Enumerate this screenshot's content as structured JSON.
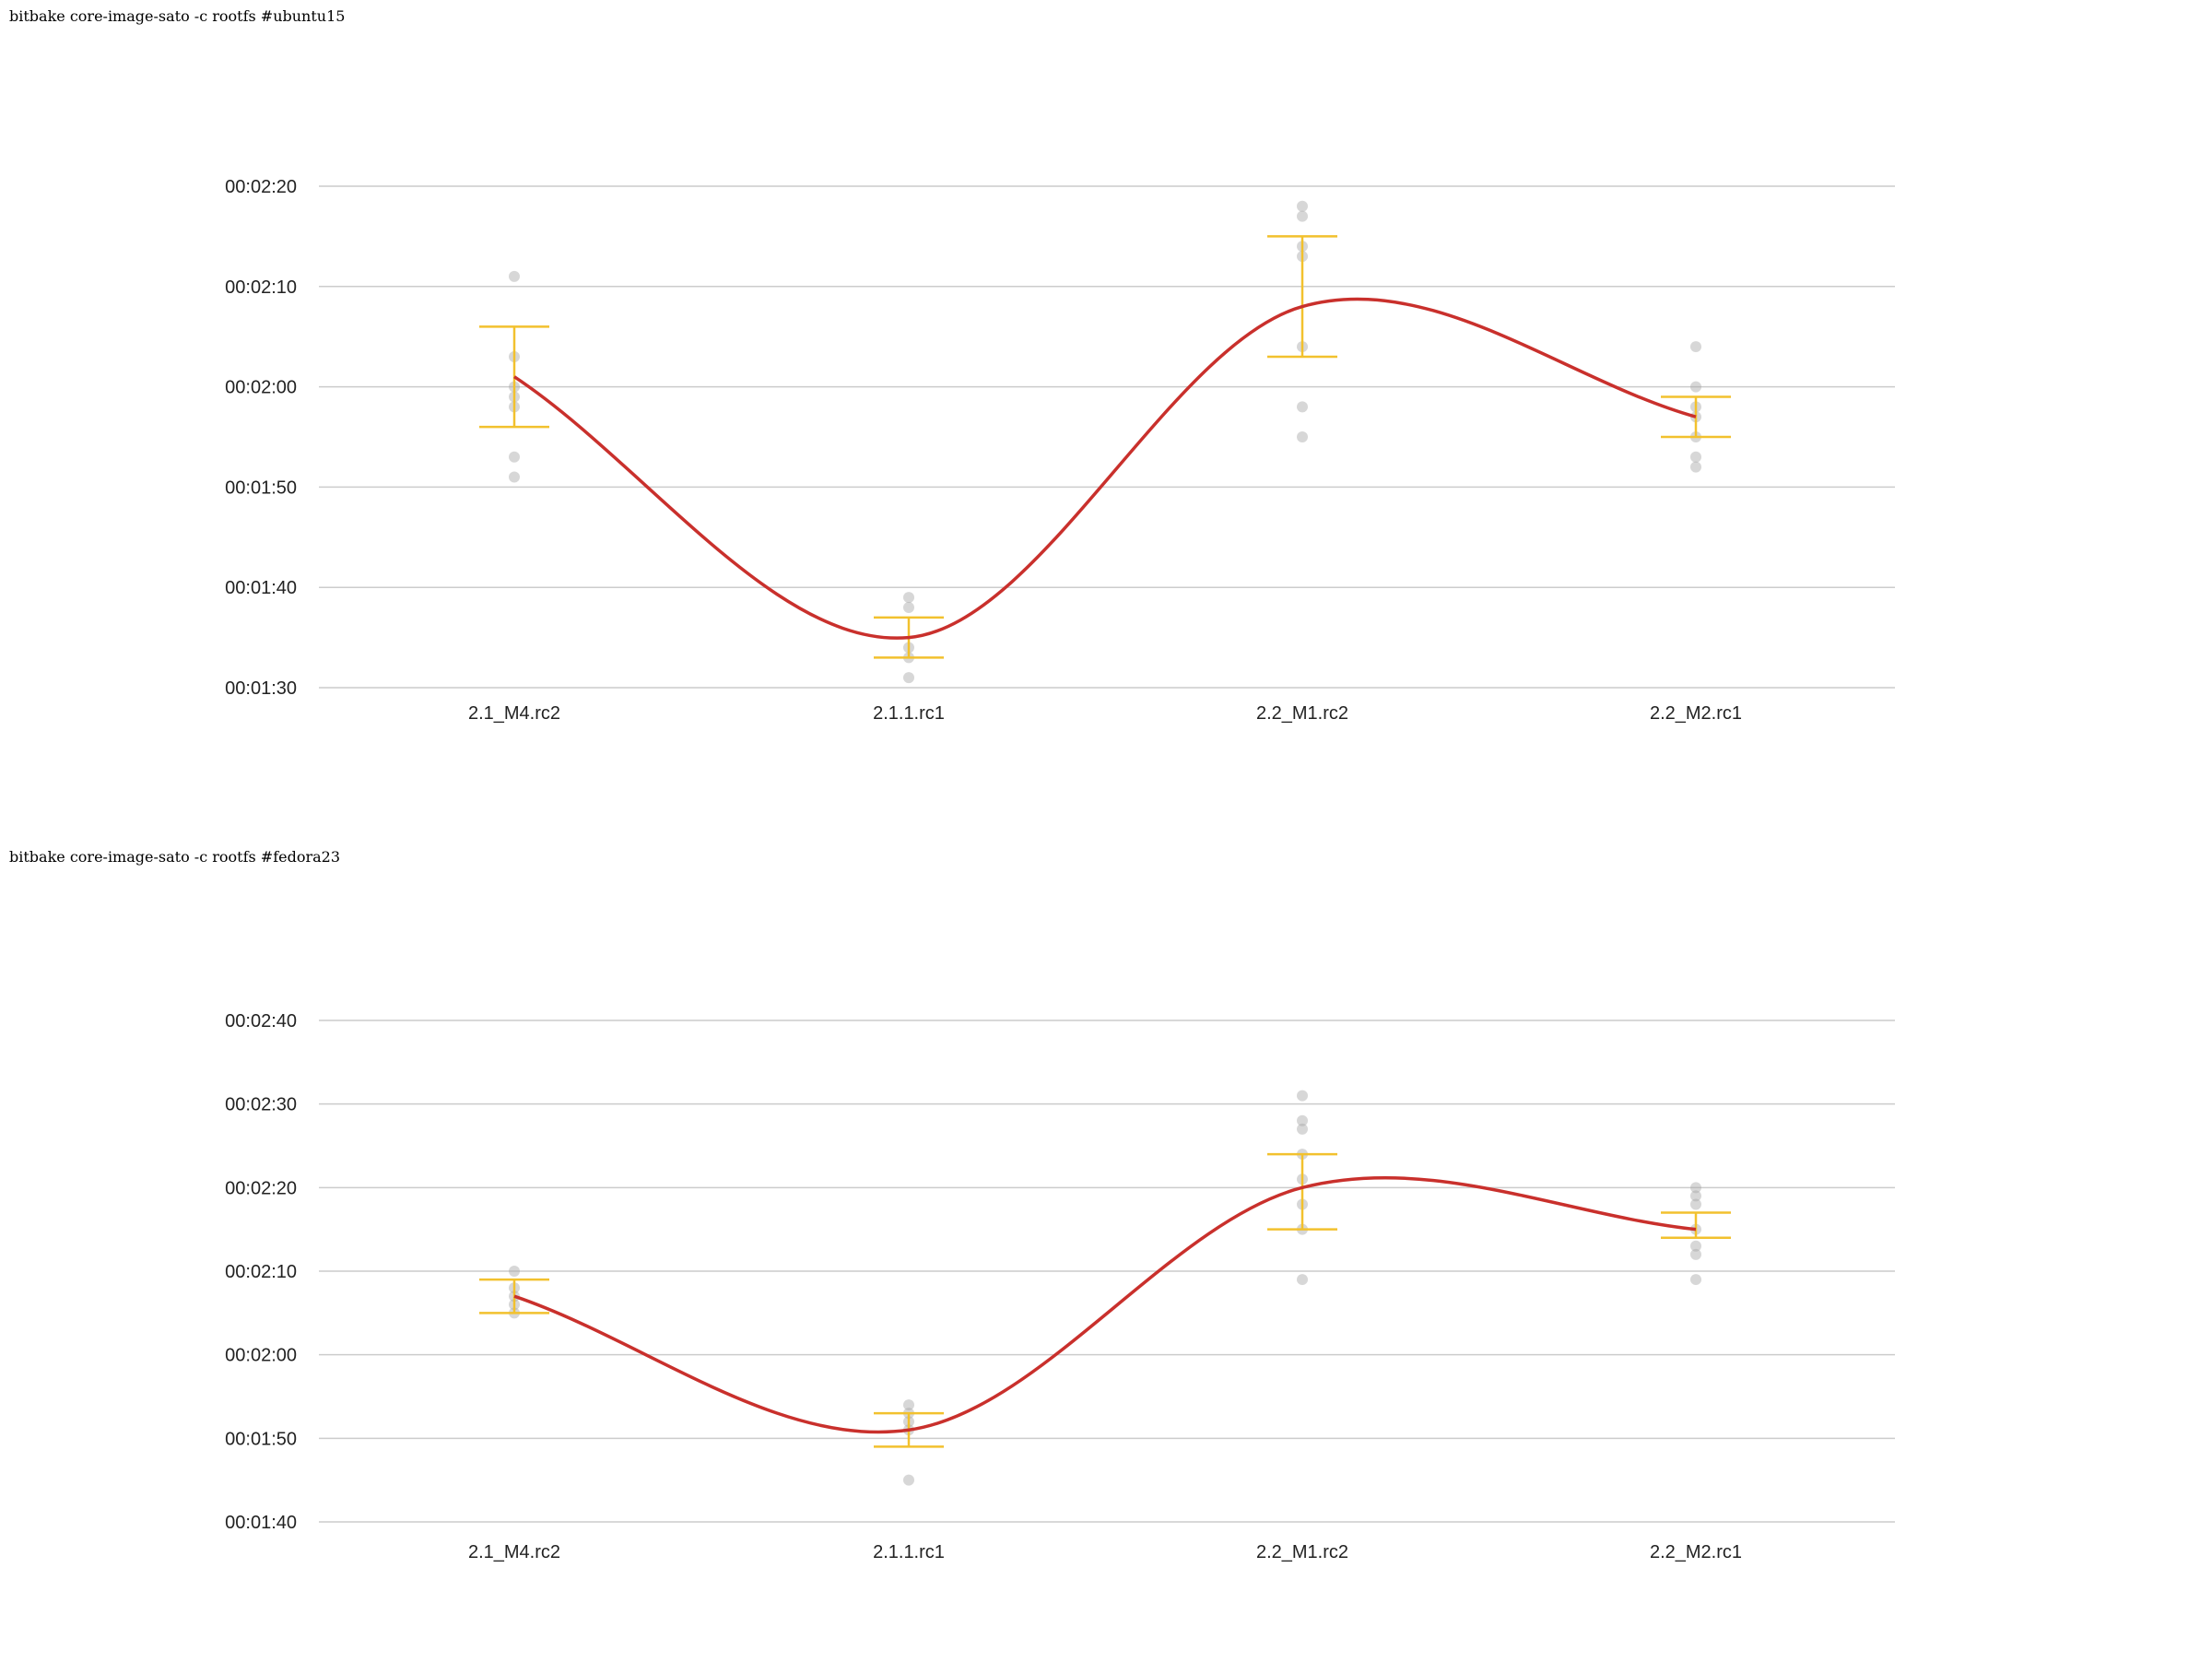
{
  "chart_data": [
    {
      "type": "line",
      "title": "bitbake core-image-sato -c rootfs #ubuntu15",
      "categories": [
        "2.1_M4.rc2",
        "2.1.1.rc1",
        "2.2_M1.rc2",
        "2.2_M2.rc1"
      ],
      "y_format": "hh:mm:ss",
      "y_ticks": [
        "00:01:30",
        "00:01:40",
        "00:01:50",
        "00:02:00",
        "00:02:10",
        "00:02:20"
      ],
      "ylim": [
        "00:01:30",
        "00:02:20"
      ],
      "grid": true,
      "series": [
        {
          "role": "mean",
          "color": "#c9302c",
          "values": [
            "00:02:01",
            "00:01:35",
            "00:02:08",
            "00:01:57"
          ]
        },
        {
          "role": "error_bar_low",
          "color": "#f2c12e",
          "values": [
            "00:01:56",
            "00:01:33",
            "00:02:03",
            "00:01:55"
          ]
        },
        {
          "role": "error_bar_high",
          "color": "#f2c12e",
          "values": [
            "00:02:06",
            "00:01:37",
            "00:02:15",
            "00:01:59"
          ]
        },
        {
          "role": "samples",
          "color": "#a6a6a6",
          "values": [
            [
              "00:02:11",
              "00:02:03",
              "00:02:00",
              "00:01:59",
              "00:01:58",
              "00:01:53",
              "00:01:51"
            ],
            [
              "00:01:39",
              "00:01:38",
              "00:01:34",
              "00:01:33",
              "00:01:31"
            ],
            [
              "00:02:18",
              "00:02:17",
              "00:02:14",
              "00:02:13",
              "00:02:04",
              "00:01:58",
              "00:01:55"
            ],
            [
              "00:02:04",
              "00:02:00",
              "00:01:58",
              "00:01:57",
              "00:01:55",
              "00:01:53",
              "00:01:52"
            ]
          ]
        }
      ]
    },
    {
      "type": "line",
      "title": "bitbake core-image-sato -c rootfs #fedora23",
      "categories": [
        "2.1_M4.rc2",
        "2.1.1.rc1",
        "2.2_M1.rc2",
        "2.2_M2.rc1"
      ],
      "y_format": "hh:mm:ss",
      "y_ticks": [
        "00:01:40",
        "00:01:50",
        "00:02:00",
        "00:02:10",
        "00:02:20",
        "00:02:30",
        "00:02:40"
      ],
      "ylim": [
        "00:01:40",
        "00:02:40"
      ],
      "grid": true,
      "series": [
        {
          "role": "mean",
          "color": "#c9302c",
          "values": [
            "00:02:07",
            "00:01:51",
            "00:02:20",
            "00:02:15"
          ]
        },
        {
          "role": "error_bar_low",
          "color": "#f2c12e",
          "values": [
            "00:02:05",
            "00:01:49",
            "00:02:15",
            "00:02:14"
          ]
        },
        {
          "role": "error_bar_high",
          "color": "#f2c12e",
          "values": [
            "00:02:09",
            "00:01:53",
            "00:02:24",
            "00:02:17"
          ]
        },
        {
          "role": "samples",
          "color": "#a6a6a6",
          "values": [
            [
              "00:02:10",
              "00:02:08",
              "00:02:07",
              "00:02:06",
              "00:02:05"
            ],
            [
              "00:01:54",
              "00:01:53",
              "00:01:52",
              "00:01:51",
              "00:01:45"
            ],
            [
              "00:02:31",
              "00:02:28",
              "00:02:27",
              "00:02:24",
              "00:02:21",
              "00:02:18",
              "00:02:15",
              "00:02:09"
            ],
            [
              "00:02:20",
              "00:02:19",
              "00:02:18",
              "00:02:15",
              "00:02:13",
              "00:02:12",
              "00:02:09"
            ]
          ]
        }
      ]
    }
  ]
}
